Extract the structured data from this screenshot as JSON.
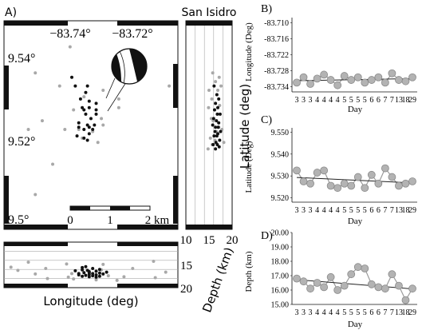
{
  "panel_labels": {
    "a": "A)",
    "b": "B)",
    "c": "C)",
    "d": "D)"
  },
  "chart_data": [
    {
      "id": "map",
      "type": "scatter",
      "title": "",
      "xlabel": "Longitude (deg)",
      "ylabel": "Latitude (deg)",
      "xticks": [
        "−83.74°",
        "−83.72°"
      ],
      "yticks": [
        "9.54°",
        "9.52°",
        "9.5°"
      ],
      "xlim": [
        -83.755,
        -83.705
      ],
      "ylim": [
        9.499,
        9.547
      ],
      "scale_bar": {
        "labels": [
          "0",
          "1",
          "2 km"
        ]
      },
      "series": [
        {
          "color": "#a8a8a8",
          "points": [
            [
              -83.746,
              9.535
            ],
            [
              -83.739,
              9.532
            ],
            [
              -83.722,
              9.529
            ],
            [
              -83.7265,
              9.531
            ],
            [
              -83.744,
              9.524
            ],
            [
              -83.748,
              9.522
            ],
            [
              -83.722,
              9.527
            ],
            [
              -83.7075,
              9.532
            ],
            [
              -83.741,
              9.514
            ],
            [
              -83.728,
              9.519
            ],
            [
              -83.7335,
              9.522
            ],
            [
              -83.7375,
              9.522
            ],
            [
              -83.7325,
              9.52
            ],
            [
              -83.7265,
              9.523
            ],
            [
              -83.735,
              9.5265
            ],
            [
              -83.732,
              9.5295
            ],
            [
              -83.727,
              9.5245
            ],
            [
              -83.746,
              9.507
            ],
            [
              -83.736,
              9.541
            ],
            [
              -83.7295,
              9.5215
            ]
          ]
        },
        {
          "color": "#111111",
          "points": [
            [
              -83.733,
              9.529
            ],
            [
              -83.731,
              9.532
            ],
            [
              -83.7305,
              9.5285
            ],
            [
              -83.7305,
              9.527
            ],
            [
              -83.732,
              9.5265
            ],
            [
              -83.7315,
              9.5255
            ],
            [
              -83.7285,
              9.5255
            ],
            [
              -83.73,
              9.5245
            ],
            [
              -83.731,
              9.523
            ],
            [
              -83.7335,
              9.5225
            ],
            [
              -83.732,
              9.522
            ],
            [
              -83.7295,
              9.522
            ],
            [
              -83.7305,
              9.521
            ],
            [
              -83.732,
              9.52
            ],
            [
              -83.734,
              9.5205
            ],
            [
              -83.731,
              9.5195
            ],
            [
              -83.729,
              9.523
            ],
            [
              -83.7345,
              9.532
            ],
            [
              -83.7355,
              9.534
            ],
            [
              -83.7285,
              9.528
            ],
            [
              -83.7335,
              9.5235
            ],
            [
              -83.7325,
              9.527
            ],
            [
              -83.7285,
              9.5265
            ],
            [
              -83.7305,
              9.5225
            ],
            [
              -83.7315,
              9.5305
            ]
          ]
        }
      ]
    },
    {
      "id": "cross-section-depth",
      "type": "scatter",
      "title": "San Isidro",
      "xlabel": "Depth (km)",
      "ylabel": "Latitude (deg)",
      "xticks": [
        "10",
        "15",
        "20"
      ],
      "xlim": [
        10,
        20
      ],
      "ylim": [
        9.499,
        9.547
      ],
      "series": [
        {
          "color": "#a8a8a8",
          "points": [
            [
              15.8,
              9.535
            ],
            [
              16.4,
              9.533
            ],
            [
              17.2,
              9.534
            ],
            [
              15.0,
              9.531
            ],
            [
              16.9,
              9.531
            ],
            [
              17.6,
              9.532
            ],
            [
              15.6,
              9.529
            ],
            [
              14.9,
              9.527
            ],
            [
              16.2,
              9.5265
            ],
            [
              17.3,
              9.5275
            ],
            [
              15.5,
              9.5245
            ],
            [
              15.9,
              9.524
            ],
            [
              16.6,
              9.5215
            ],
            [
              17.1,
              9.5225
            ],
            [
              17.8,
              9.522
            ],
            [
              15.3,
              9.52
            ],
            [
              16.3,
              9.5195
            ],
            [
              15.7,
              9.5185
            ],
            [
              18.2,
              9.519
            ],
            [
              14.8,
              9.5175
            ]
          ]
        },
        {
          "color": "#111111",
          "points": [
            [
              16.1,
              9.532
            ],
            [
              16.7,
              9.53
            ],
            [
              17.1,
              9.529
            ],
            [
              16.4,
              9.528
            ],
            [
              16.9,
              9.527
            ],
            [
              16.2,
              9.5265
            ],
            [
              16.8,
              9.5255
            ],
            [
              17.4,
              9.5255
            ],
            [
              16.0,
              9.5245
            ],
            [
              16.6,
              9.524
            ],
            [
              17.1,
              9.5235
            ],
            [
              15.8,
              9.523
            ],
            [
              16.4,
              9.5225
            ],
            [
              17.0,
              9.5225
            ],
            [
              17.5,
              9.5215
            ],
            [
              16.3,
              9.5215
            ],
            [
              16.9,
              9.521
            ],
            [
              16.1,
              9.5205
            ],
            [
              16.7,
              9.5205
            ],
            [
              17.3,
              9.5195
            ],
            [
              16.5,
              9.519
            ],
            [
              15.9,
              9.5185
            ],
            [
              16.8,
              9.5185
            ],
            [
              17.2,
              9.518
            ],
            [
              16.4,
              9.5175
            ]
          ]
        }
      ]
    },
    {
      "id": "cross-section-longitude",
      "type": "scatter",
      "title": "",
      "xlabel": "Longitude (deg)",
      "ylabel": "Depth (km)",
      "yticks": [
        "15",
        "20"
      ],
      "xlim": [
        -83.755,
        -83.705
      ],
      "ylim": [
        10,
        20
      ],
      "series": [
        {
          "color": "#a8a8a8",
          "points": [
            [
              -83.748,
              14.4
            ],
            [
              -83.743,
              15.8
            ],
            [
              -83.737,
              14.8
            ],
            [
              -83.7265,
              14.9
            ],
            [
              -83.718,
              15.8
            ],
            [
              -83.712,
              14.2
            ],
            [
              -83.751,
              16.2
            ],
            [
              -83.746,
              17.0
            ],
            [
              -83.7355,
              16.9
            ],
            [
              -83.725,
              17.4
            ],
            [
              -83.7205,
              17.6
            ],
            [
              -83.7085,
              16.6
            ],
            [
              -83.7115,
              17.8
            ],
            [
              -83.7365,
              17.7
            ],
            [
              -83.7285,
              18.3
            ],
            [
              -83.7225,
              18.4
            ],
            [
              -83.735,
              18.1
            ],
            [
              -83.727,
              16.1
            ],
            [
              -83.7425,
              18.0
            ],
            [
              -83.753,
              15.5
            ]
          ]
        },
        {
          "color": "#111111",
          "points": [
            [
              -83.7325,
              15.6
            ],
            [
              -83.7295,
              15.8
            ],
            [
              -83.7275,
              16.0
            ],
            [
              -83.731,
              16.2
            ],
            [
              -83.7285,
              16.4
            ],
            [
              -83.7305,
              16.5
            ],
            [
              -83.732,
              16.7
            ],
            [
              -83.7295,
              16.9
            ],
            [
              -83.7275,
              16.8
            ],
            [
              -83.7335,
              16.9
            ],
            [
              -83.7305,
              17.1
            ],
            [
              -83.7285,
              17.2
            ],
            [
              -83.7315,
              17.3
            ],
            [
              -83.7295,
              17.4
            ],
            [
              -83.7325,
              17.5
            ],
            [
              -83.7265,
              17.0
            ],
            [
              -83.7345,
              16.3
            ],
            [
              -83.7305,
              17.6
            ],
            [
              -83.7285,
              17.7
            ],
            [
              -83.7315,
              15.4
            ],
            [
              -83.7255,
              16.6
            ],
            [
              -83.7335,
              17.2
            ],
            [
              -83.7275,
              17.5
            ],
            [
              -83.7305,
              16.7
            ],
            [
              -83.7325,
              16.1
            ]
          ]
        }
      ]
    },
    {
      "id": "B",
      "type": "line",
      "title": "",
      "xlabel": "Day",
      "ylabel": "Longitude (Deg)",
      "categories": [
        "3",
        "3",
        "3",
        "4",
        "4",
        "4",
        "4",
        "5",
        "5",
        "5",
        "5",
        "6",
        "6",
        "7",
        "7",
        "13",
        "18",
        "29"
      ],
      "yticks": [
        "-83.710",
        "-83.716",
        "-83.722",
        "-83.728",
        "-83.734"
      ],
      "ylim": [
        -83.736,
        -83.708
      ],
      "values": [
        -83.7325,
        -83.7305,
        -83.733,
        -83.731,
        -83.7295,
        -83.7315,
        -83.7335,
        -83.73,
        -83.7315,
        -83.7305,
        -83.7325,
        -83.7315,
        -83.7305,
        -83.7325,
        -83.729,
        -83.7315,
        -83.732,
        -83.7305
      ],
      "trend": [
        -83.7318,
        -83.731
      ]
    },
    {
      "id": "C",
      "type": "line",
      "title": "",
      "xlabel": "Day",
      "ylabel": "Latitude (Deg)",
      "categories": [
        "3",
        "3",
        "3",
        "4",
        "4",
        "4",
        "4",
        "5",
        "5",
        "5",
        "5",
        "6",
        "6",
        "7",
        "7",
        "13",
        "18",
        "29"
      ],
      "yticks": [
        "9.550",
        "9.540",
        "9.530",
        "9.520"
      ],
      "ylim": [
        9.518,
        9.552
      ],
      "values": [
        9.5325,
        9.5275,
        9.5265,
        9.5315,
        9.5325,
        9.5255,
        9.5245,
        9.5265,
        9.5255,
        9.5295,
        9.5245,
        9.5305,
        9.5265,
        9.5335,
        9.5295,
        9.5255,
        9.5265,
        9.5275
      ],
      "trend": [
        9.5293,
        9.5268
      ]
    },
    {
      "id": "D",
      "type": "line",
      "title": "",
      "xlabel": "Day",
      "ylabel": "Depth (km)",
      "categories": [
        "3",
        "3",
        "3",
        "4",
        "4",
        "4",
        "4",
        "5",
        "5",
        "5",
        "5",
        "6",
        "6",
        "7",
        "7",
        "13",
        "18",
        "29"
      ],
      "yticks": [
        "20.00",
        "19.00",
        "18.00",
        "17.00",
        "16.00",
        "15.00"
      ],
      "ylim": [
        15.0,
        20.0
      ],
      "values": [
        16.8,
        16.6,
        16.1,
        16.5,
        16.2,
        16.9,
        16.0,
        16.3,
        17.1,
        17.6,
        17.5,
        16.4,
        16.2,
        16.1,
        17.1,
        16.3,
        15.3,
        16.1
      ],
      "trend": [
        16.72,
        16.08
      ]
    }
  ]
}
